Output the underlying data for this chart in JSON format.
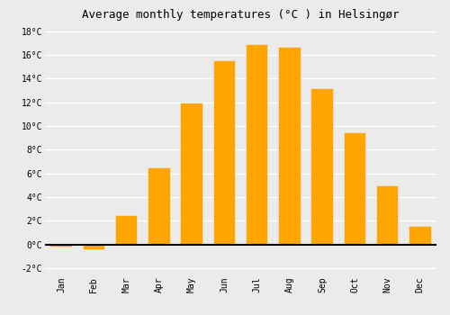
{
  "title": "Average monthly temperatures (°C ) in Helsingør",
  "months": [
    "Jan",
    "Feb",
    "Mar",
    "Apr",
    "May",
    "Jun",
    "Jul",
    "Aug",
    "Sep",
    "Oct",
    "Nov",
    "Dec"
  ],
  "values": [
    -0.2,
    -0.4,
    2.4,
    6.4,
    11.9,
    15.5,
    16.8,
    16.6,
    13.1,
    9.4,
    4.9,
    1.5
  ],
  "bar_color": "#FFA500",
  "bar_edge_color": "#FFA500",
  "ylim": [
    -2.5,
    18.5
  ],
  "yticks": [
    -2,
    0,
    2,
    4,
    6,
    8,
    10,
    12,
    14,
    16,
    18
  ],
  "background_color": "#ebebeb",
  "grid_color": "#ffffff",
  "title_fontsize": 9,
  "tick_fontsize": 7,
  "font_family": "monospace",
  "bar_width": 0.65
}
